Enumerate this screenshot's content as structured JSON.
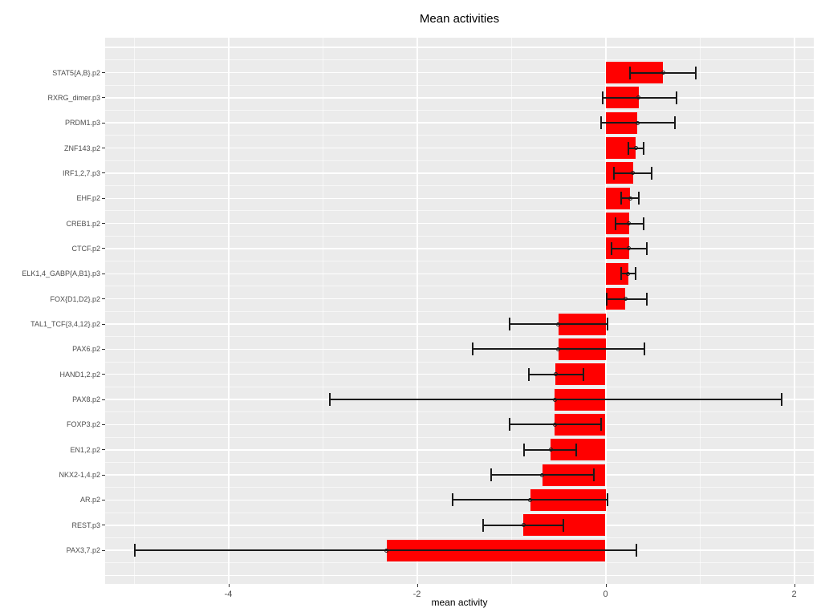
{
  "colors": {
    "bar": "#ff0000",
    "panel_background": "#ebebeb",
    "grid": "#ffffff",
    "error_bar": "#1a1a1a",
    "axis_text": "#4d4d4d",
    "tick_mark": "#333333"
  },
  "chart_data": {
    "type": "bar",
    "orientation": "horizontal",
    "title": "Mean activities",
    "xlabel": "mean activity",
    "ylabel": "",
    "x_ticks": [
      -4,
      -2,
      0,
      2
    ],
    "x_minor_ticks": [
      -5,
      -3,
      -1,
      1
    ],
    "xlim": [
      -5.31,
      2.21
    ],
    "grid": true,
    "legend": false,
    "error_bars": true,
    "rows": [
      {
        "label": "STAT5{A,B}.p2",
        "value": 0.61,
        "err_low": 0.26,
        "err_high": 0.96
      },
      {
        "label": "RXRG_dimer.p3",
        "value": 0.35,
        "err_low": -0.03,
        "err_high": 0.75
      },
      {
        "label": "PRDM1.p3",
        "value": 0.34,
        "err_low": -0.05,
        "err_high": 0.74
      },
      {
        "label": "ZNF143.p2",
        "value": 0.32,
        "err_low": 0.24,
        "err_high": 0.4
      },
      {
        "label": "IRF1,2,7.p3",
        "value": 0.29,
        "err_low": 0.09,
        "err_high": 0.49
      },
      {
        "label": "EHF.p2",
        "value": 0.26,
        "err_low": 0.17,
        "err_high": 0.35
      },
      {
        "label": "CREB1.p2",
        "value": 0.25,
        "err_low": 0.11,
        "err_high": 0.4
      },
      {
        "label": "CTCF.p2",
        "value": 0.25,
        "err_low": 0.06,
        "err_high": 0.44
      },
      {
        "label": "ELK1,4_GABP{A,B1}.p3",
        "value": 0.24,
        "err_low": 0.17,
        "err_high": 0.32
      },
      {
        "label": "FOX{D1,D2}.p2",
        "value": 0.21,
        "err_low": 0.01,
        "err_high": 0.44
      },
      {
        "label": "TAL1_TCF{3,4,12}.p2",
        "value": -0.5,
        "err_low": -1.02,
        "err_high": 0.02
      },
      {
        "label": "PAX6.p2",
        "value": -0.5,
        "err_low": -1.41,
        "err_high": 0.41
      },
      {
        "label": "HAND1,2.p2",
        "value": -0.53,
        "err_low": -0.81,
        "err_high": -0.23
      },
      {
        "label": "PAX8.p2",
        "value": -0.54,
        "err_low": -2.92,
        "err_high": 1.87
      },
      {
        "label": "FOXP3.p2",
        "value": -0.54,
        "err_low": -1.02,
        "err_high": -0.05
      },
      {
        "label": "EN1,2.p2",
        "value": -0.58,
        "err_low": -0.86,
        "err_high": -0.31
      },
      {
        "label": "NKX2-1,4.p2",
        "value": -0.67,
        "err_low": -1.21,
        "err_high": -0.12
      },
      {
        "label": "AR.p2",
        "value": -0.8,
        "err_low": -1.62,
        "err_high": 0.02
      },
      {
        "label": "REST.p3",
        "value": -0.87,
        "err_low": -1.3,
        "err_high": -0.45
      },
      {
        "label": "PAX3,7.p2",
        "value": -2.32,
        "err_low": -4.99,
        "err_high": 0.33
      }
    ]
  }
}
